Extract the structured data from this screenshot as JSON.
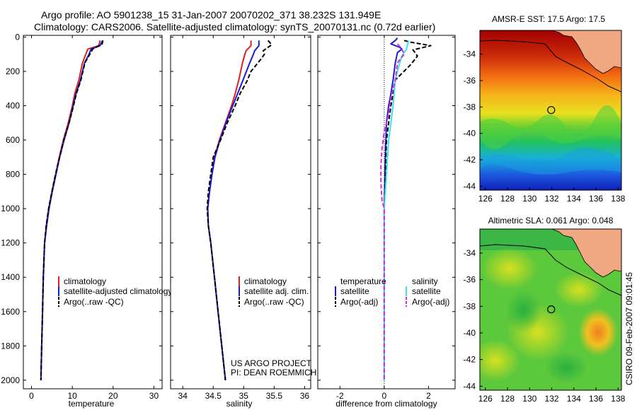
{
  "figure": {
    "title_line1": "Argo profile: AO 5901238_15 31-Jan-2007 20070202_371 38.232S 131.949E",
    "title_line2": "Climatology: CARS2006. Satellite-adjusted climatology: synTS_20070131.nc (0.72d earlier)",
    "side_stamp": "CSIRO 09-Feb-2007 09:01:45",
    "project_line1": "US ARGO PROJECT",
    "project_line2": "PI: DEAN ROEMMICH",
    "colors": {
      "climatology": "#e0201c",
      "satellite": "#1c1cd6",
      "argo": "#000000",
      "satellite_salinity": "#38e6e6",
      "argo_salinity_diff": "#dc28dc",
      "land": "#f0a882"
    }
  },
  "chart_data": [
    {
      "id": "temperature",
      "type": "line",
      "xlabel": "temperature",
      "ylabel": "",
      "xlim": [
        -2,
        32
      ],
      "ylim": [
        2050,
        -10
      ],
      "xticks": [
        "0",
        "10",
        "20",
        "30"
      ],
      "yticks": [
        "0",
        "200",
        "400",
        "600",
        "800",
        "1000",
        "1200",
        "1400",
        "1600",
        "1800",
        "2000"
      ],
      "legend": [
        "climatology",
        "satellite-adjusted climatology",
        "Argo(..raw -QC)"
      ],
      "legend_position": "lower-left",
      "series": [
        {
          "name": "climatology",
          "style": "solid",
          "color": "#e0201c",
          "points": [
            [
              16.8,
              20
            ],
            [
              16.5,
              50
            ],
            [
              13.8,
              70
            ],
            [
              13.3,
              100
            ],
            [
              12.5,
              150
            ],
            [
              11.6,
              250
            ],
            [
              10.6,
              330
            ],
            [
              10.0,
              400
            ],
            [
              9.0,
              500
            ],
            [
              7.8,
              600
            ],
            [
              6.8,
              700
            ],
            [
              5.9,
              800
            ],
            [
              5.0,
              900
            ],
            [
              4.2,
              1000
            ],
            [
              3.6,
              1100
            ],
            [
              3.2,
              1200
            ],
            [
              2.9,
              1400
            ],
            [
              2.7,
              1600
            ],
            [
              2.5,
              1800
            ],
            [
              2.3,
              2000
            ]
          ]
        },
        {
          "name": "satellite-adjusted climatology",
          "style": "solid",
          "color": "#1c1cd6",
          "points": [
            [
              17.4,
              20
            ],
            [
              16.8,
              50
            ],
            [
              14.6,
              70
            ],
            [
              14.1,
              100
            ],
            [
              13.0,
              150
            ],
            [
              12.0,
              250
            ],
            [
              10.9,
              330
            ],
            [
              10.2,
              400
            ],
            [
              9.2,
              500
            ],
            [
              8.0,
              600
            ],
            [
              6.9,
              700
            ],
            [
              6.0,
              800
            ],
            [
              5.1,
              900
            ],
            [
              4.3,
              1000
            ],
            [
              3.7,
              1100
            ],
            [
              3.2,
              1200
            ],
            [
              2.9,
              1400
            ],
            [
              2.7,
              1600
            ],
            [
              2.5,
              1800
            ],
            [
              2.3,
              2000
            ]
          ]
        },
        {
          "name": "Argo(..raw -QC)",
          "style": "dashed",
          "color": "#000000",
          "points": [
            [
              17.5,
              20
            ],
            [
              17.3,
              40
            ],
            [
              15.0,
              70
            ],
            [
              14.3,
              100
            ],
            [
              13.1,
              150
            ],
            [
              12.1,
              250
            ],
            [
              11.0,
              330
            ],
            [
              10.3,
              400
            ],
            [
              9.2,
              500
            ],
            [
              7.9,
              600
            ],
            [
              6.9,
              700
            ],
            [
              5.9,
              800
            ],
            [
              5.0,
              900
            ],
            [
              4.2,
              1000
            ],
            [
              3.6,
              1100
            ],
            [
              3.2,
              1200
            ],
            [
              2.9,
              1400
            ],
            [
              2.7,
              1600
            ],
            [
              2.5,
              1800
            ],
            [
              2.3,
              2000
            ]
          ]
        }
      ]
    },
    {
      "id": "salinity",
      "type": "line",
      "xlabel": "salinity",
      "ylabel": "",
      "xlim": [
        33.8,
        36.1
      ],
      "ylim": [
        2050,
        -10
      ],
      "xticks": [
        "34",
        "34.5",
        "35",
        "35.5",
        "36"
      ],
      "yticks": [],
      "legend": [
        "climatology",
        "satellite adj. clim.",
        "Argo(..raw -QC)"
      ],
      "legend_position": "lower-right",
      "series": [
        {
          "name": "climatology",
          "style": "solid",
          "color": "#e0201c",
          "points": [
            [
              35.12,
              20
            ],
            [
              35.12,
              50
            ],
            [
              35.04,
              80
            ],
            [
              35.02,
              100
            ],
            [
              34.98,
              150
            ],
            [
              34.92,
              250
            ],
            [
              34.86,
              330
            ],
            [
              34.8,
              400
            ],
            [
              34.7,
              500
            ],
            [
              34.6,
              600
            ],
            [
              34.52,
              700
            ],
            [
              34.48,
              800
            ],
            [
              34.44,
              900
            ],
            [
              34.41,
              1000
            ],
            [
              34.42,
              1100
            ],
            [
              34.46,
              1200
            ],
            [
              34.52,
              1400
            ],
            [
              34.58,
              1600
            ],
            [
              34.64,
              1800
            ],
            [
              34.7,
              2000
            ]
          ]
        },
        {
          "name": "satellite adj. clim.",
          "style": "solid",
          "color": "#1c1cd6",
          "points": [
            [
              35.25,
              20
            ],
            [
              35.25,
              50
            ],
            [
              35.18,
              80
            ],
            [
              35.16,
              100
            ],
            [
              35.1,
              150
            ],
            [
              34.99,
              250
            ],
            [
              34.9,
              330
            ],
            [
              34.82,
              400
            ],
            [
              34.71,
              500
            ],
            [
              34.61,
              600
            ],
            [
              34.53,
              700
            ],
            [
              34.48,
              800
            ],
            [
              34.44,
              900
            ],
            [
              34.41,
              1000
            ],
            [
              34.42,
              1100
            ],
            [
              34.46,
              1200
            ],
            [
              34.52,
              1400
            ],
            [
              34.58,
              1600
            ],
            [
              34.64,
              1800
            ],
            [
              34.7,
              2000
            ]
          ]
        },
        {
          "name": "Argo(..raw -QC)",
          "style": "dashed",
          "color": "#000000",
          "points": [
            [
              35.4,
              20
            ],
            [
              35.46,
              45
            ],
            [
              35.32,
              80
            ],
            [
              35.34,
              100
            ],
            [
              35.28,
              130
            ],
            [
              35.12,
              200
            ],
            [
              35.05,
              260
            ],
            [
              34.94,
              330
            ],
            [
              34.86,
              400
            ],
            [
              34.73,
              500
            ],
            [
              34.62,
              600
            ],
            [
              34.5,
              700
            ],
            [
              34.46,
              800
            ],
            [
              34.42,
              900
            ],
            [
              34.4,
              1000
            ],
            [
              34.42,
              1100
            ],
            [
              34.46,
              1200
            ],
            [
              34.52,
              1400
            ],
            [
              34.58,
              1600
            ],
            [
              34.64,
              1800
            ],
            [
              34.7,
              2000
            ]
          ]
        }
      ]
    },
    {
      "id": "difference",
      "type": "line",
      "xlabel": "difference from climatology",
      "ylabel": "",
      "xlim": [
        -3,
        3.2
      ],
      "ylim": [
        2050,
        -10
      ],
      "xticks": [
        "-2",
        "0",
        "2"
      ],
      "yticks": [],
      "zero_line": true,
      "legend_groups": [
        {
          "heading": "temperature",
          "entries": [
            "satellite",
            "Argo(-adj)"
          ]
        },
        {
          "heading": "salinity",
          "entries": [
            "satellite",
            "Argo(-adj)"
          ]
        }
      ],
      "legend_position": "lower-center",
      "series": [
        {
          "name": "temperature satellite",
          "style": "solid",
          "color": "#1c1cd6",
          "points": [
            [
              0.6,
              5
            ],
            [
              0.5,
              20
            ],
            [
              0.3,
              40
            ],
            [
              0.7,
              60
            ],
            [
              0.8,
              70
            ],
            [
              0.6,
              90
            ],
            [
              0.5,
              150
            ],
            [
              0.4,
              250
            ],
            [
              0.3,
              330
            ],
            [
              0.2,
              400
            ],
            [
              0.1,
              500
            ],
            [
              0.05,
              700
            ],
            [
              0.0,
              1000
            ],
            [
              0.0,
              2000
            ]
          ]
        },
        {
          "name": "temperature Argo(-adj)",
          "style": "dashed",
          "color": "#000000",
          "points": [
            [
              0.9,
              20
            ],
            [
              1.2,
              30
            ],
            [
              2.1,
              50
            ],
            [
              1.3,
              75
            ],
            [
              1.5,
              110
            ],
            [
              1.2,
              160
            ],
            [
              0.5,
              250
            ],
            [
              0.4,
              330
            ],
            [
              0.3,
              400
            ],
            [
              0.2,
              500
            ],
            [
              0.1,
              600
            ],
            [
              0.05,
              800
            ],
            [
              0.0,
              1000
            ],
            [
              0.0,
              2000
            ]
          ]
        },
        {
          "name": "salinity satellite",
          "style": "solid",
          "color": "#38e6e6",
          "points": [
            [
              1.1,
              20
            ],
            [
              1.0,
              70
            ],
            [
              0.8,
              110
            ],
            [
              0.7,
              150
            ],
            [
              0.5,
              250
            ],
            [
              0.4,
              400
            ],
            [
              0.2,
              600
            ],
            [
              0.1,
              800
            ],
            [
              0.0,
              1000
            ],
            [
              0.0,
              2000
            ]
          ]
        },
        {
          "name": "salinity Argo(-adj)",
          "style": "dashed",
          "color": "#dc28dc",
          "points": [
            [
              0.6,
              40
            ],
            [
              0.8,
              70
            ],
            [
              0.9,
              100
            ],
            [
              0.6,
              150
            ],
            [
              0.5,
              250
            ],
            [
              0.3,
              350
            ],
            [
              0.2,
              450
            ],
            [
              0.0,
              550
            ],
            [
              -0.1,
              650
            ],
            [
              -0.15,
              750
            ],
            [
              -0.15,
              850
            ],
            [
              -0.1,
              950
            ],
            [
              0.0,
              1000
            ],
            [
              0.0,
              2000
            ]
          ]
        }
      ]
    },
    {
      "id": "amsr_sst_map",
      "type": "heatmap",
      "title": "AMSR-E SST: 17.5 Argo: 17.5",
      "xlim": [
        125.5,
        138.3
      ],
      "ylim": [
        -44.3,
        -32.2
      ],
      "xticks": [
        "126",
        "128",
        "130",
        "132",
        "134",
        "136",
        "138"
      ],
      "yticks": [
        "-34",
        "-36",
        "-38",
        "-40",
        "-42",
        "-44"
      ],
      "float_position": {
        "lon": 131.949,
        "lat": -38.232
      },
      "field_summary": "warm (~19-20) in north near coast, ~17.5 at float, cooling to ~13 in south"
    },
    {
      "id": "altimetric_sla_map",
      "type": "heatmap",
      "title": "Altimetric SLA: 0.061 Argo: 0.048",
      "xlim": [
        125.5,
        138.3
      ],
      "ylim": [
        -44.3,
        -32.2
      ],
      "xticks": [
        "126",
        "128",
        "130",
        "132",
        "134",
        "136",
        "138"
      ],
      "yticks": [
        "-34",
        "-36",
        "-38",
        "-40",
        "-42",
        "-44"
      ],
      "float_position": {
        "lon": 131.949,
        "lat": -38.232
      },
      "field_summary": "mostly small positive anomalies (green-yellow) with an orange high near 136E 40S"
    }
  ]
}
